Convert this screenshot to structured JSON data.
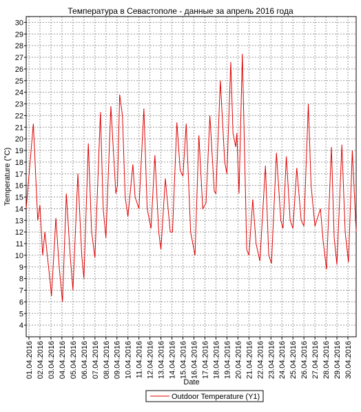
{
  "chart_data": {
    "type": "line",
    "title": "Температура в Севастополе - данные за апрель 2016 года",
    "x_label": "Date",
    "y_label": "Temperature (°C)",
    "x": [
      -0.25,
      0.4,
      0.8,
      1.0,
      1.25,
      1.45,
      1.95,
      2.05,
      2.45,
      2.75,
      3.05,
      3.4,
      3.75,
      4.0,
      4.45,
      4.8,
      5.0,
      5.4,
      5.7,
      6.0,
      6.5,
      6.75,
      7.0,
      7.45,
      7.9,
      8.05,
      8.25,
      8.5,
      8.75,
      9.0,
      9.45,
      9.65,
      10.0,
      10.45,
      10.75,
      11.1,
      11.45,
      11.8,
      12.0,
      12.4,
      12.85,
      13.05,
      13.45,
      13.75,
      14.0,
      14.3,
      14.7,
      15.1,
      15.45,
      15.8,
      16.1,
      16.45,
      16.85,
      17.0,
      17.4,
      17.8,
      18.0,
      18.35,
      18.55,
      18.8,
      18.9,
      19.1,
      19.4,
      19.6,
      19.8,
      20.0,
      20.35,
      20.65,
      21.0,
      21.5,
      21.8,
      22.05,
      22.5,
      22.9,
      23.1,
      23.4,
      23.75,
      24.0,
      24.35,
      24.75,
      25.0,
      25.4,
      25.65,
      26.0,
      26.5,
      26.75,
      27.05,
      27.5,
      27.75,
      28.0,
      28.45,
      28.75,
      29.05,
      29.4,
      29.75
    ],
    "series": [
      {
        "name": "Outdoor Temperature (Y1)",
        "color": "#e00000",
        "values": [
          14,
          21.3,
          13,
          14.3,
          10,
          12,
          7.5,
          6.5,
          13.2,
          9,
          6,
          15.3,
          10,
          7,
          17,
          10,
          8,
          19.6,
          12,
          9.8,
          22.3,
          14,
          11.5,
          22.8,
          15.3,
          16,
          23.8,
          22,
          15,
          13.3,
          17.8,
          15,
          14,
          22.6,
          14,
          12.3,
          18.6,
          12,
          10.5,
          16.6,
          12,
          12,
          21.4,
          17.3,
          16.8,
          21.3,
          12,
          10,
          20.3,
          14,
          14.5,
          22,
          15.5,
          15.3,
          25,
          18,
          17,
          26.6,
          20.5,
          19.3,
          20.5,
          15.3,
          27.3,
          19,
          10.5,
          10,
          14.8,
          11,
          9.5,
          17.7,
          10,
          9.3,
          18.8,
          13,
          12.3,
          18.5,
          13,
          12.3,
          17.5,
          13,
          12.5,
          23,
          16,
          12.5,
          14,
          11.2,
          8.8,
          19.3,
          11.5,
          9.2,
          19.5,
          12,
          9.4,
          19,
          12
        ]
      }
    ],
    "xlim": [
      -0.25,
      29.75
    ],
    "xticks": [
      {
        "value": 0,
        "label": "01.04.2016"
      },
      {
        "value": 1,
        "label": "02.04.2016"
      },
      {
        "value": 2,
        "label": "03.04.2016"
      },
      {
        "value": 3,
        "label": "04.04.2016"
      },
      {
        "value": 4,
        "label": "05.04.2016"
      },
      {
        "value": 5,
        "label": "06.04.2016"
      },
      {
        "value": 6,
        "label": "07.04.2016"
      },
      {
        "value": 7,
        "label": "08.04.2016"
      },
      {
        "value": 8,
        "label": "09.04.2016"
      },
      {
        "value": 9,
        "label": "10.04.2016"
      },
      {
        "value": 10,
        "label": "11.04.2016"
      },
      {
        "value": 11,
        "label": "12.04.2016"
      },
      {
        "value": 12,
        "label": "13.04.2016"
      },
      {
        "value": 13,
        "label": "14.04.2016"
      },
      {
        "value": 14,
        "label": "15.04.2016"
      },
      {
        "value": 15,
        "label": "16.04.2016"
      },
      {
        "value": 16,
        "label": "17.04.2016"
      },
      {
        "value": 17,
        "label": "18.04.2016"
      },
      {
        "value": 18,
        "label": "19.04.2016"
      },
      {
        "value": 19,
        "label": "20.04.2016"
      },
      {
        "value": 20,
        "label": "21.04.2016"
      },
      {
        "value": 21,
        "label": "22.04.2016"
      },
      {
        "value": 22,
        "label": "23.04.2016"
      },
      {
        "value": 23,
        "label": "24.04.2016"
      },
      {
        "value": 24,
        "label": "25.04.2016"
      },
      {
        "value": 25,
        "label": "26.04.2016"
      },
      {
        "value": 26,
        "label": "27.04.2016"
      },
      {
        "value": 27,
        "label": "28.04.2016"
      },
      {
        "value": 28,
        "label": "29.04.2016"
      },
      {
        "value": 29,
        "label": "30.04.2016"
      }
    ],
    "ylim": [
      3,
      30.5
    ],
    "yticks": [
      4,
      5,
      6,
      7,
      8,
      9,
      10,
      11,
      12,
      13,
      14,
      15,
      16,
      17,
      18,
      19,
      20,
      21,
      22,
      23,
      24,
      25,
      26,
      27,
      28,
      29,
      30
    ],
    "grid": true
  }
}
